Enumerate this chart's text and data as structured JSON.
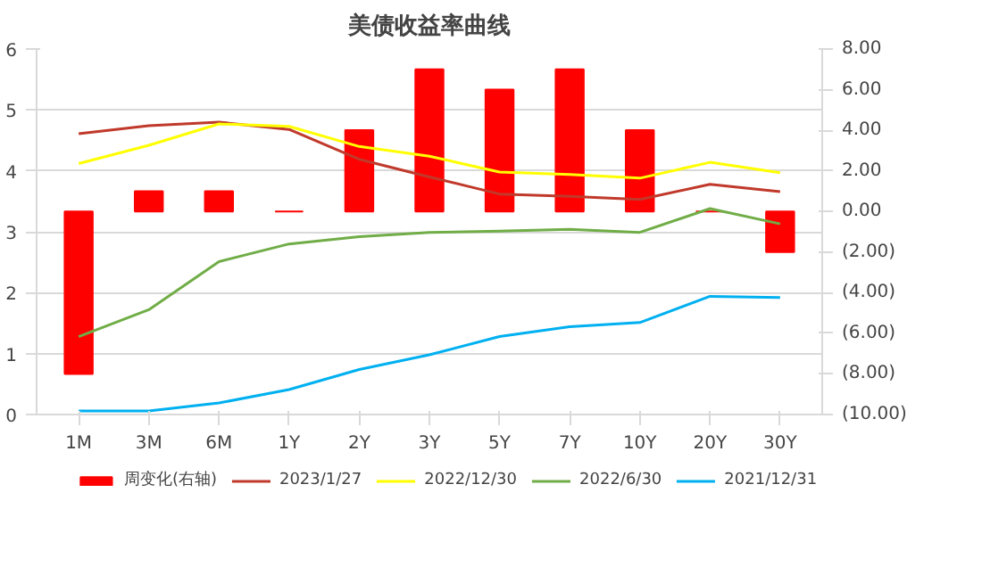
{
  "chart_data": {
    "type": "line",
    "title": "美债收益率曲线",
    "categories": [
      "1M",
      "3M",
      "6M",
      "1Y",
      "2Y",
      "3Y",
      "5Y",
      "7Y",
      "10Y",
      "20Y",
      "30Y"
    ],
    "series": [
      {
        "name": "周变化(右轴)",
        "type": "bar",
        "axis": "y2",
        "color": "#ff0000",
        "values": [
          -8,
          1,
          1,
          0,
          4,
          7,
          6,
          7,
          4,
          0,
          -2
        ]
      },
      {
        "name": "2023/1/27",
        "color": "#c0392b",
        "values": [
          4.61,
          4.74,
          4.8,
          4.68,
          4.19,
          3.9,
          3.62,
          3.58,
          3.53,
          3.78,
          3.66
        ]
      },
      {
        "name": "2022/12/30",
        "color": "#ffff00",
        "values": [
          4.12,
          4.42,
          4.77,
          4.73,
          4.4,
          4.24,
          3.98,
          3.94,
          3.88,
          4.14,
          3.97
        ]
      },
      {
        "name": "2022/6/30",
        "color": "#70ad47",
        "values": [
          1.28,
          1.72,
          2.51,
          2.8,
          2.92,
          2.99,
          3.01,
          3.04,
          2.99,
          3.38,
          3.13
        ]
      },
      {
        "name": "2021/12/31",
        "color": "#00b0f0",
        "values": [
          0.06,
          0.06,
          0.19,
          0.41,
          0.74,
          0.98,
          1.28,
          1.44,
          1.51,
          1.94,
          1.92
        ]
      }
    ],
    "ylim": [
      0,
      6
    ],
    "yticks": [
      0,
      1,
      2,
      3,
      4,
      5,
      6
    ],
    "y2lim": [
      -10,
      8
    ],
    "y2ticks": [
      {
        "value": 8,
        "label": "8.00"
      },
      {
        "value": 6,
        "label": "6.00"
      },
      {
        "value": 4,
        "label": "4.00"
      },
      {
        "value": 2,
        "label": "2.00"
      },
      {
        "value": 0,
        "label": "0.00"
      },
      {
        "value": -2,
        "label": "(2.00)"
      },
      {
        "value": -4,
        "label": "(4.00)"
      },
      {
        "value": -6,
        "label": "(6.00)"
      },
      {
        "value": -8,
        "label": "(8.00)"
      },
      {
        "value": -10,
        "label": "(10.00)"
      }
    ],
    "grid": "y",
    "legend": "bottom",
    "marker": "none",
    "line_style": "solid"
  }
}
